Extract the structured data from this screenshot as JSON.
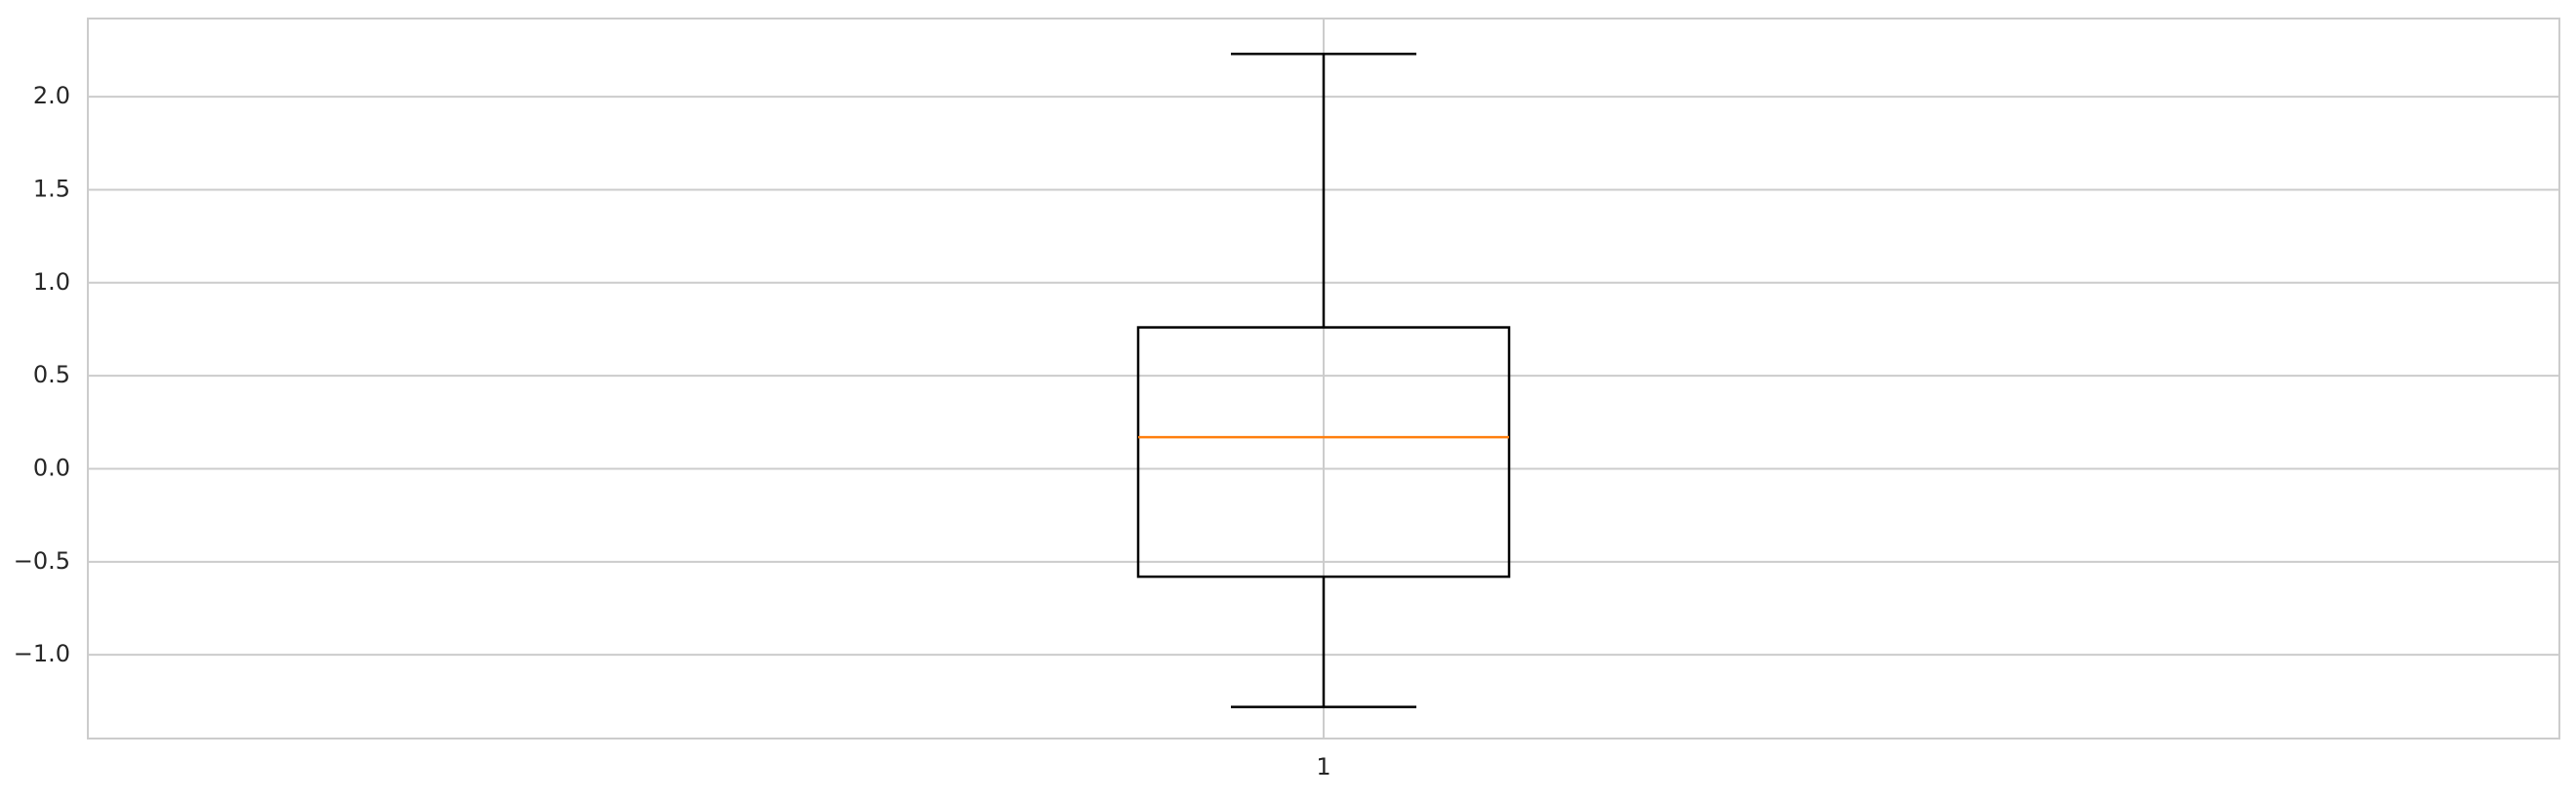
{
  "chart_data": {
    "type": "box",
    "categories": [
      "1"
    ],
    "boxes": [
      {
        "category": "1",
        "whisker_low": -1.28,
        "q1": -0.58,
        "median": 0.17,
        "q3": 0.76,
        "whisker_high": 2.23
      }
    ],
    "ylim": [
      -1.45,
      2.42
    ],
    "yticks": [
      -1.0,
      -0.5,
      0.0,
      0.5,
      1.0,
      1.5,
      2.0
    ],
    "ytick_labels": [
      "−1.0",
      "−0.5",
      "0.0",
      "0.5",
      "1.0",
      "1.5",
      "2.0"
    ],
    "grid": true,
    "colors": {
      "box": "#000000",
      "median": "#ff7f0e",
      "grid": "#cccccc",
      "frame": "#cccccc"
    }
  }
}
